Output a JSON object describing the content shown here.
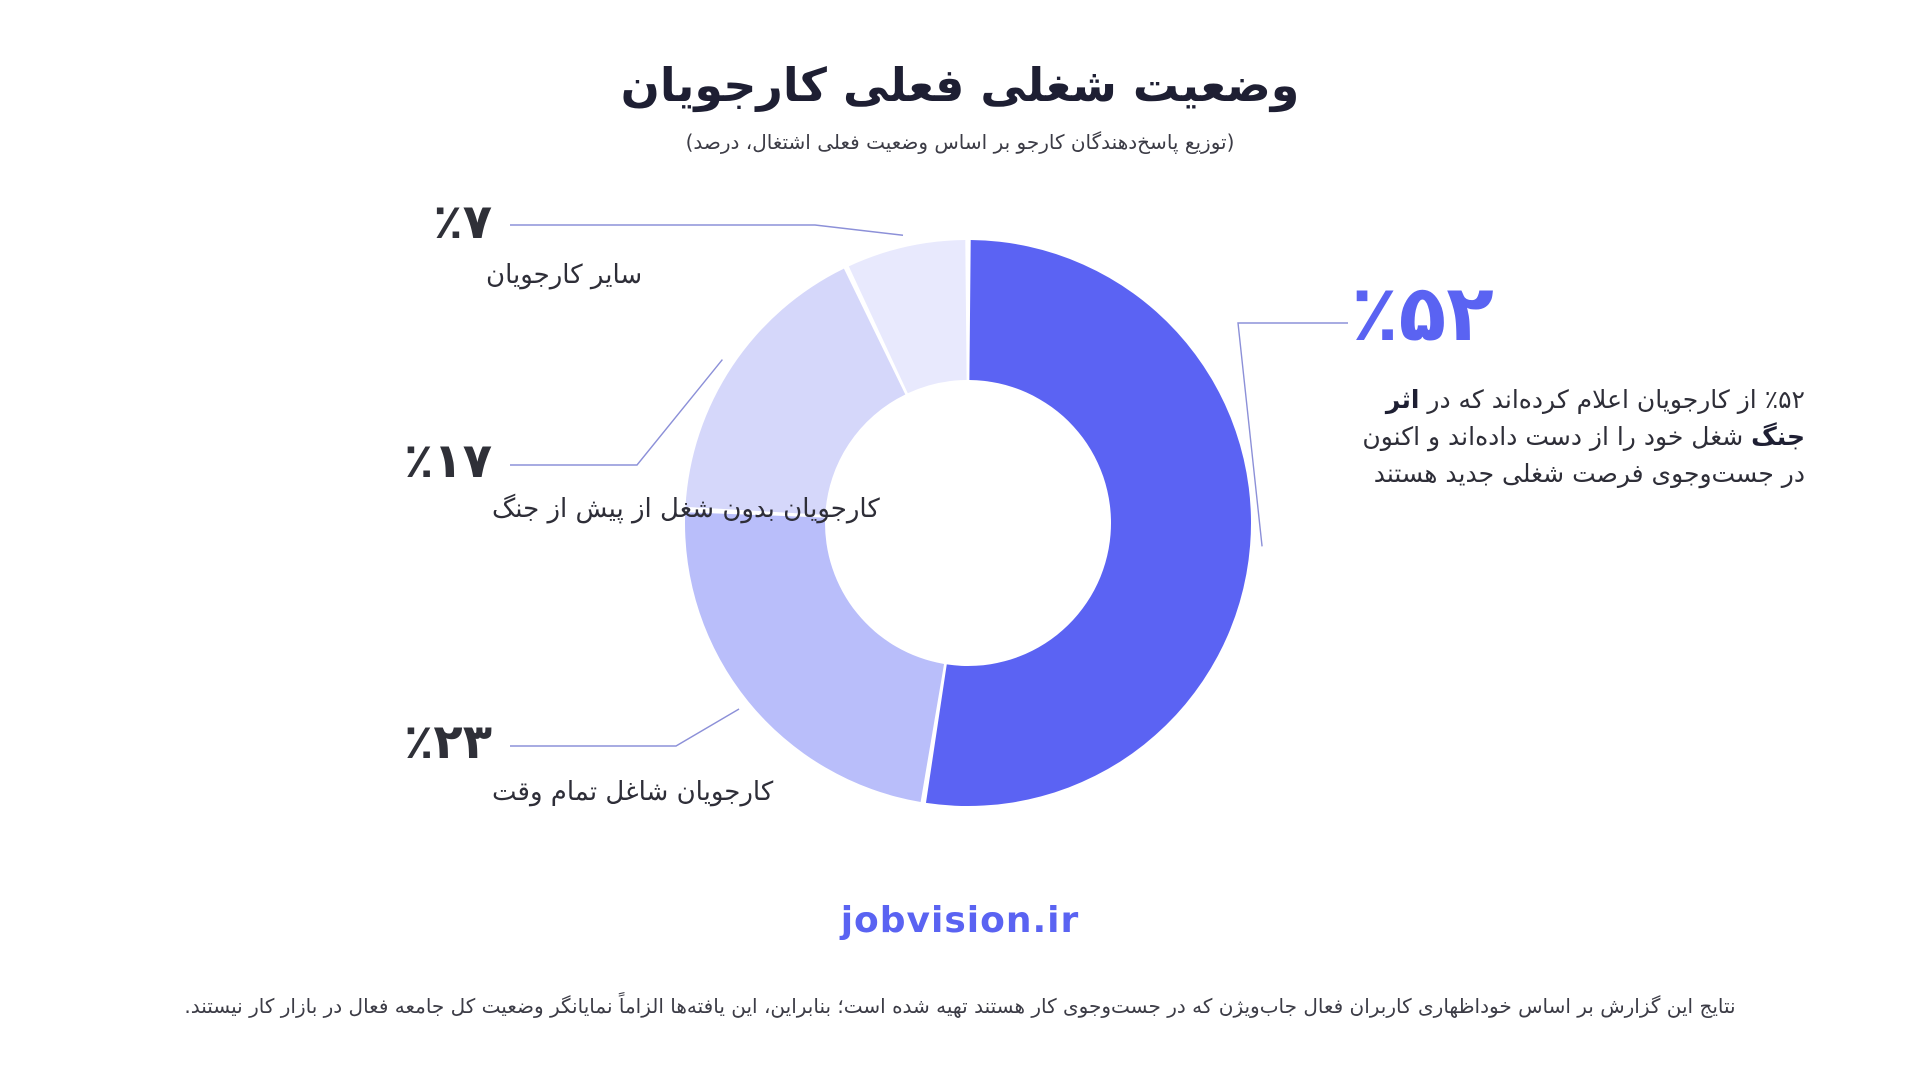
{
  "header": {
    "title": "وضعیت شغلی فعلی کارجویان",
    "subtitle": "(توزیع پاسخ‌دهندگان کارجو بر اساس وضعیت فعلی اشتغال، درصد)"
  },
  "chart_data": {
    "type": "pie",
    "donut": true,
    "title": "وضعیت شغلی فعلی کارجویان",
    "subtitle": "(توزیع پاسخ‌دهندگان کارجو بر اساس وضعیت فعلی اشتغال، درصد)",
    "categories": [
      "war_job_loss",
      "employed_full_time",
      "unemployed_before_war",
      "other"
    ],
    "values": [
      52,
      23,
      17,
      7
    ],
    "value_labels": [
      "٪۵۲",
      "٪۲۳",
      "٪۱۷",
      "٪۷"
    ],
    "labels": [
      "",
      "کارجویان شاغل تمام وقت",
      "کارجویان بدون شغل از پیش از جنگ",
      "سایر کارجویان"
    ],
    "colors": [
      "#5b63f3",
      "#b9befa",
      "#d5d7fa",
      "#e8e9fd"
    ]
  },
  "callout": {
    "percent": "٪۵۲",
    "text_before": "از کارجویان اعلام کرده‌اند که در",
    "text_bold": "اثر جنگ",
    "text_after": "شغل خود را از دست داده‌اند و اکنون در جست‌وجوی فرصت شغلی جدید هستند"
  },
  "brand": {
    "site": "jobvision.ir"
  },
  "footnote": {
    "text": "نتایج این گزارش بر اساس خوداظهاری کاربران فعال جاب‌ویژن که در جست‌وجوی کار هستند تهیه شده است؛ بنابراین، این یافته‌ها الزاماً نمایانگر وضعیت کل جامعه فعال در بازار کار نیستند."
  },
  "colors": {
    "accent": "#5a63f2",
    "title": "#1e1f33",
    "leader_line": "#8c90d8"
  }
}
